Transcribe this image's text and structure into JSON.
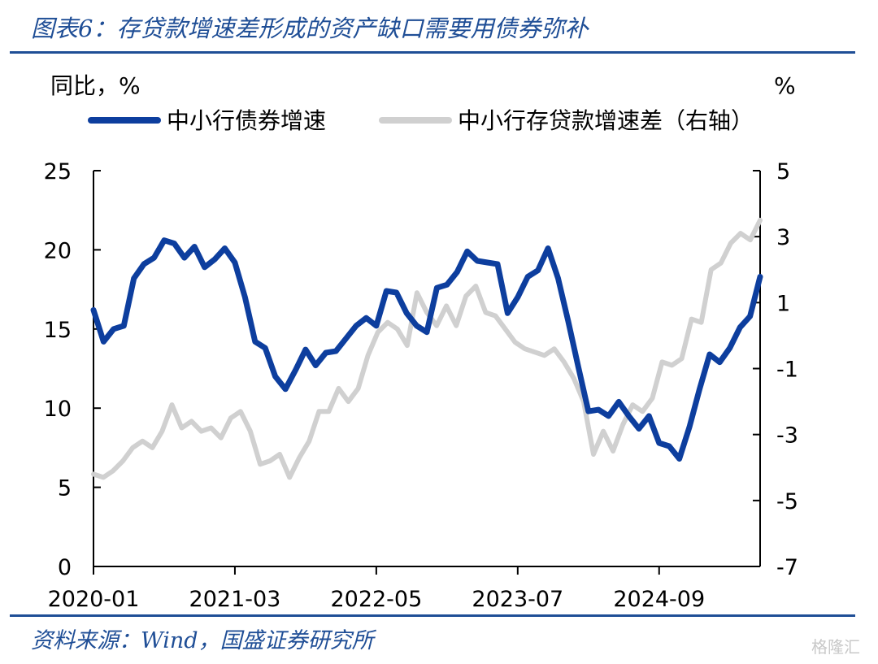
{
  "title": "图表6：存贷款增速差形成的资产缺口需要用债券弥补",
  "source": "资料来源：Wind，国盛证券研究所",
  "watermark": "格隆汇",
  "chart_data": {
    "type": "line",
    "y_left_label": "同比，%",
    "y_right_label": "%",
    "y_left_range": [
      0,
      25
    ],
    "y_left_ticks": [
      "0",
      "5",
      "10",
      "15",
      "20",
      "25"
    ],
    "y_right_range": [
      -7,
      5
    ],
    "y_right_ticks": [
      "-7",
      "-5",
      "-3",
      "-1",
      "1",
      "3",
      "5"
    ],
    "x_tick_labels": [
      "2020-01",
      "2021-03",
      "2022-05",
      "2023-07",
      "2024-09"
    ],
    "legend_position": "top",
    "series": [
      {
        "name": "中小行债券增速",
        "axis": "left",
        "color": "#0d3e9e",
        "values": [
          16.2,
          14.2,
          15.0,
          15.2,
          18.2,
          19.1,
          19.5,
          20.6,
          20.4,
          19.5,
          20.2,
          18.9,
          19.4,
          20.1,
          19.2,
          17.0,
          14.2,
          13.8,
          12.0,
          11.2,
          12.4,
          13.7,
          12.7,
          13.5,
          13.6,
          14.4,
          15.2,
          15.7,
          15.2,
          17.4,
          17.3,
          16.0,
          15.2,
          14.8,
          17.6,
          17.8,
          18.6,
          19.9,
          19.3,
          19.2,
          19.1,
          16.0,
          17.0,
          18.3,
          18.7,
          20.1,
          18.2,
          15.5,
          12.6,
          9.8,
          9.9,
          9.5,
          10.4,
          9.5,
          8.7,
          9.5,
          7.8,
          7.6,
          6.8,
          8.8,
          11.2,
          13.4,
          12.9,
          13.8,
          15.1,
          15.8,
          18.3
        ]
      },
      {
        "name": "中小行存贷款增速差（右轴）",
        "axis": "right",
        "color": "#d0d0d0",
        "values": [
          -4.2,
          -4.3,
          -4.1,
          -3.8,
          -3.4,
          -3.2,
          -3.4,
          -2.9,
          -2.1,
          -2.8,
          -2.6,
          -2.9,
          -2.8,
          -3.1,
          -2.5,
          -2.3,
          -2.9,
          -3.9,
          -3.8,
          -3.6,
          -4.3,
          -3.7,
          -3.2,
          -2.3,
          -2.3,
          -1.6,
          -2.0,
          -1.6,
          -0.6,
          0.1,
          0.4,
          0.2,
          -0.3,
          1.3,
          0.7,
          0.3,
          0.9,
          0.3,
          1.2,
          1.5,
          0.7,
          0.6,
          0.2,
          -0.2,
          -0.4,
          -0.5,
          -0.6,
          -0.4,
          -0.8,
          -1.3,
          -2.0,
          -3.6,
          -2.9,
          -3.5,
          -2.7,
          -2.1,
          -2.3,
          -1.9,
          -0.8,
          -0.9,
          -0.7,
          0.5,
          0.4,
          2.0,
          2.2,
          2.8,
          3.1,
          2.9,
          3.5
        ]
      }
    ]
  }
}
